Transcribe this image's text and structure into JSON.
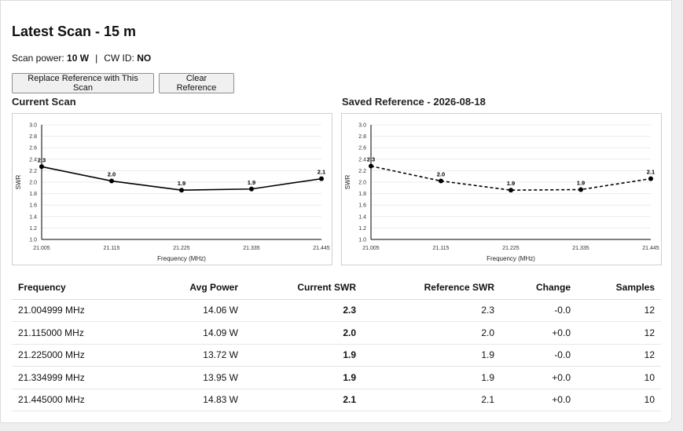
{
  "page": {
    "title": "Latest Scan - 15 m",
    "scan_power_label": "Scan power:",
    "scan_power_value": "10 W",
    "separator": "|",
    "cw_id_label": "CW ID:",
    "cw_id_value": "NO"
  },
  "buttons": {
    "replace_label": "Replace Reference with This Scan",
    "clear_label": "Clear Reference"
  },
  "charts": {
    "current_title": "Current Scan",
    "reference_title": "Saved Reference - 2026-08-18"
  },
  "chart_data": [
    {
      "type": "line",
      "title": "Current Scan",
      "xlabel": "Frequency (MHz)",
      "ylabel": "SWR",
      "x": [
        "21.005",
        "21.115",
        "21.225",
        "21.335",
        "21.445"
      ],
      "y_ticks": [
        "1.0",
        "1.2",
        "1.4",
        "1.6",
        "1.8",
        "2.0",
        "2.2",
        "2.4",
        "2.6",
        "2.8",
        "3.0"
      ],
      "ylim": [
        1.0,
        3.0
      ],
      "series": [
        {
          "values": [
            2.27,
            2.02,
            1.86,
            1.88,
            2.06
          ],
          "labels": [
            "2.3",
            "2.0",
            "1.9",
            "1.9",
            "2.1"
          ],
          "style": "solid"
        }
      ],
      "grid": true,
      "color": "#000000"
    },
    {
      "type": "line",
      "title": "Saved Reference - 2026-08-18",
      "xlabel": "Frequency (MHz)",
      "ylabel": "SWR",
      "x": [
        "21.005",
        "21.115",
        "21.225",
        "21.335",
        "21.445"
      ],
      "y_ticks": [
        "1.0",
        "1.2",
        "1.4",
        "1.6",
        "1.8",
        "2.0",
        "2.2",
        "2.4",
        "2.6",
        "2.8",
        "3.0"
      ],
      "ylim": [
        1.0,
        3.0
      ],
      "series": [
        {
          "values": [
            2.28,
            2.02,
            1.86,
            1.87,
            2.06
          ],
          "labels": [
            "2.3",
            "2.0",
            "1.9",
            "1.9",
            "2.1"
          ],
          "style": "dashed"
        }
      ],
      "grid": true,
      "color": "#000000"
    }
  ],
  "table": {
    "headers": [
      "Frequency",
      "Avg Power",
      "Current SWR",
      "Reference SWR",
      "Change",
      "Samples"
    ],
    "rows": [
      [
        "21.004999 MHz",
        "14.06 W",
        "2.3",
        "2.3",
        "-0.0",
        "12"
      ],
      [
        "21.115000 MHz",
        "14.09 W",
        "2.0",
        "2.0",
        "+0.0",
        "12"
      ],
      [
        "21.225000 MHz",
        "13.72 W",
        "1.9",
        "1.9",
        "-0.0",
        "12"
      ],
      [
        "21.334999 MHz",
        "13.95 W",
        "1.9",
        "1.9",
        "+0.0",
        "10"
      ],
      [
        "21.445000 MHz",
        "14.83 W",
        "2.1",
        "2.1",
        "+0.0",
        "10"
      ]
    ]
  }
}
